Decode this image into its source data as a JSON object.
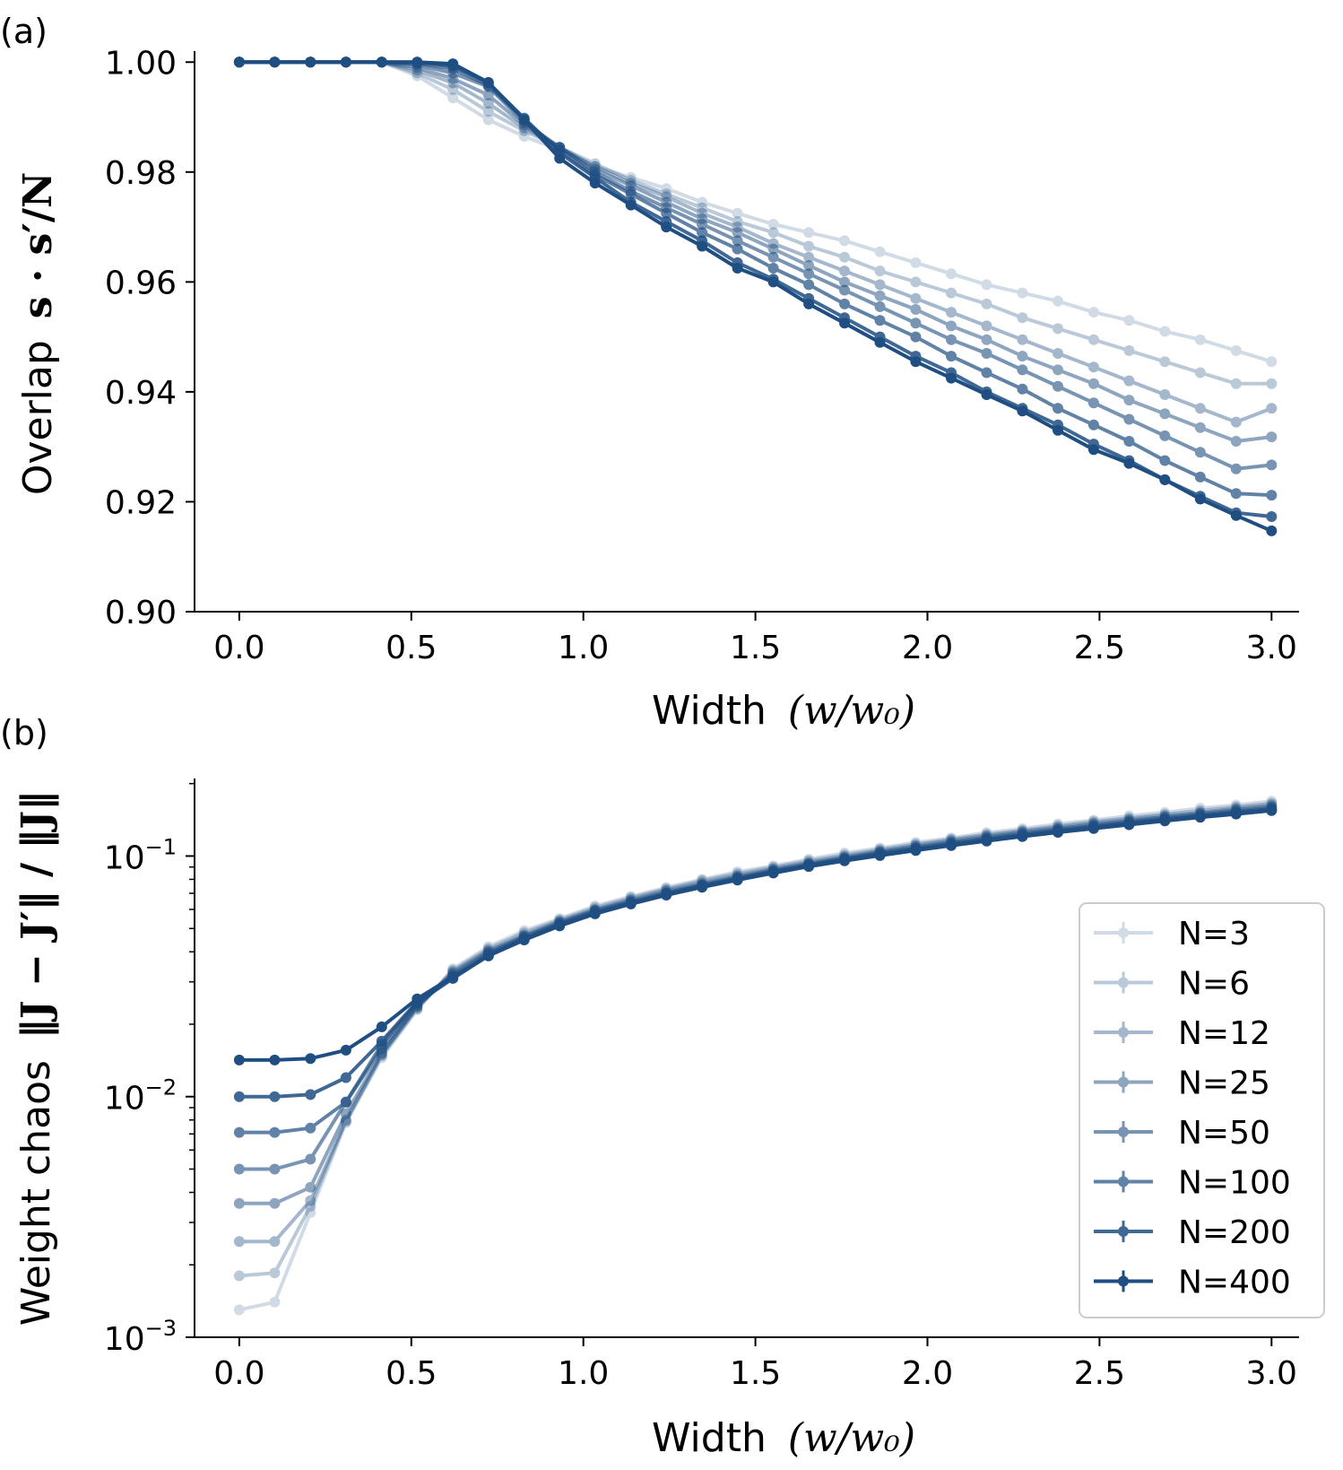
{
  "panels": {
    "a": {
      "label": "(a)"
    },
    "b": {
      "label": "(b)"
    }
  },
  "chart_data": [
    {
      "panel": "a",
      "type": "line",
      "title": "",
      "xlabel_text": "Width",
      "xlabel_math": "(w/w₀)",
      "ylabel_text": "Overlap",
      "ylabel_math": "s · s′/N",
      "xlim": [
        -0.13,
        3.08
      ],
      "ylim": [
        0.9,
        1.002
      ],
      "xticks": [
        0.0,
        0.5,
        1.0,
        1.5,
        2.0,
        2.5,
        3.0
      ],
      "xtick_labels": [
        "0.0",
        "0.5",
        "1.0",
        "1.5",
        "2.0",
        "2.5",
        "3.0"
      ],
      "yticks": [
        0.9,
        0.92,
        0.94,
        0.96,
        0.98,
        1.0
      ],
      "ytick_labels": [
        "0.90",
        "0.92",
        "0.94",
        "0.96",
        "0.98",
        "1.00"
      ],
      "x": [
        0.0,
        0.103,
        0.207,
        0.31,
        0.414,
        0.517,
        0.621,
        0.724,
        0.828,
        0.931,
        1.034,
        1.138,
        1.241,
        1.345,
        1.448,
        1.552,
        1.655,
        1.759,
        1.862,
        1.966,
        2.069,
        2.172,
        2.276,
        2.379,
        2.483,
        2.586,
        2.69,
        2.793,
        2.897,
        3.0
      ],
      "series": [
        {
          "name": "N=3",
          "values": [
            1.0,
            1.0,
            1.0,
            1.0,
            1.0,
            0.9975,
            0.9935,
            0.9895,
            0.9865,
            0.984,
            0.981,
            0.979,
            0.977,
            0.9745,
            0.9725,
            0.9705,
            0.969,
            0.9675,
            0.9655,
            0.9635,
            0.9615,
            0.9595,
            0.958,
            0.9565,
            0.9545,
            0.953,
            0.951,
            0.9495,
            0.9475,
            0.9455
          ]
        },
        {
          "name": "N=6",
          "values": [
            1.0,
            1.0,
            1.0,
            1.0,
            1.0,
            0.998,
            0.995,
            0.991,
            0.9875,
            0.9845,
            0.9815,
            0.9785,
            0.976,
            0.9735,
            0.971,
            0.969,
            0.9665,
            0.9645,
            0.962,
            0.96,
            0.958,
            0.956,
            0.9535,
            0.9515,
            0.9495,
            0.9475,
            0.9455,
            0.9435,
            0.9415,
            0.9415
          ]
        },
        {
          "name": "N=12",
          "values": [
            1.0,
            1.0,
            1.0,
            1.0,
            1.0,
            0.9985,
            0.9962,
            0.9925,
            0.988,
            0.9845,
            0.981,
            0.978,
            0.9755,
            0.9725,
            0.97,
            0.967,
            0.9645,
            0.962,
            0.9595,
            0.957,
            0.9545,
            0.952,
            0.9495,
            0.947,
            0.9445,
            0.942,
            0.9395,
            0.937,
            0.9345,
            0.937
          ]
        },
        {
          "name": "N=25",
          "values": [
            1.0,
            1.0,
            1.0,
            1.0,
            1.0,
            0.999,
            0.997,
            0.994,
            0.9885,
            0.9845,
            0.9805,
            0.9775,
            0.9745,
            0.9715,
            0.969,
            0.966,
            0.963,
            0.96,
            0.9575,
            0.955,
            0.952,
            0.9495,
            0.9465,
            0.944,
            0.9415,
            0.9385,
            0.936,
            0.9335,
            0.931,
            0.9318
          ]
        },
        {
          "name": "N=50",
          "values": [
            1.0,
            1.0,
            1.0,
            1.0,
            1.0,
            0.9995,
            0.998,
            0.9955,
            0.989,
            0.9845,
            0.98,
            0.9765,
            0.9735,
            0.9705,
            0.9675,
            0.9645,
            0.9615,
            0.9585,
            0.9555,
            0.9525,
            0.9495,
            0.947,
            0.944,
            0.941,
            0.938,
            0.935,
            0.932,
            0.929,
            0.926,
            0.9267
          ]
        },
        {
          "name": "N=100",
          "values": [
            1.0,
            1.0,
            1.0,
            1.0,
            1.0,
            0.9998,
            0.9988,
            0.9958,
            0.9895,
            0.984,
            0.9795,
            0.976,
            0.9725,
            0.969,
            0.966,
            0.9625,
            0.9595,
            0.956,
            0.953,
            0.95,
            0.9465,
            0.9435,
            0.9405,
            0.937,
            0.934,
            0.931,
            0.9275,
            0.9245,
            0.9215,
            0.9212
          ]
        },
        {
          "name": "N=200",
          "values": [
            1.0,
            1.0,
            1.0,
            1.0,
            1.0,
            1.0,
            0.9993,
            0.9962,
            0.9898,
            0.9835,
            0.979,
            0.9745,
            0.971,
            0.9675,
            0.9635,
            0.9605,
            0.957,
            0.9535,
            0.95,
            0.9465,
            0.9435,
            0.94,
            0.937,
            0.934,
            0.9305,
            0.9275,
            0.924,
            0.921,
            0.918,
            0.9173
          ]
        },
        {
          "name": "N=400",
          "values": [
            1.0,
            1.0,
            1.0,
            1.0,
            1.0,
            1.0,
            0.9997,
            0.9963,
            0.9895,
            0.9825,
            0.978,
            0.974,
            0.97,
            0.9665,
            0.9625,
            0.96,
            0.956,
            0.9525,
            0.949,
            0.9455,
            0.9425,
            0.9395,
            0.9365,
            0.933,
            0.9295,
            0.927,
            0.924,
            0.9205,
            0.9175,
            0.9147
          ]
        }
      ],
      "colors": [
        "#1f4e82"
      ],
      "alphas": [
        0.2,
        0.3,
        0.4,
        0.5,
        0.6,
        0.7,
        0.85,
        1.0
      ],
      "grid": false
    },
    {
      "panel": "b",
      "type": "line",
      "scale_y": "log",
      "title": "",
      "xlabel_text": "Width",
      "xlabel_math": "(w/w₀)",
      "ylabel_text": "Weight chaos",
      "ylabel_math": "‖J − J′‖ / ‖J‖",
      "xlim": [
        -0.13,
        3.08
      ],
      "ylim": [
        0.001,
        0.21
      ],
      "xticks": [
        0.0,
        0.5,
        1.0,
        1.5,
        2.0,
        2.5,
        3.0
      ],
      "xtick_labels": [
        "0.0",
        "0.5",
        "1.0",
        "1.5",
        "2.0",
        "2.5",
        "3.0"
      ],
      "yticks": [
        0.001,
        0.01,
        0.1
      ],
      "ytick_labels": [
        {
          "base": "10",
          "exp": "−3"
        },
        {
          "base": "10",
          "exp": "−2"
        },
        {
          "base": "10",
          "exp": "−1"
        }
      ],
      "x": [
        0.0,
        0.103,
        0.207,
        0.31,
        0.414,
        0.517,
        0.621,
        0.724,
        0.828,
        0.931,
        1.034,
        1.138,
        1.241,
        1.345,
        1.448,
        1.552,
        1.655,
        1.759,
        1.862,
        1.966,
        2.069,
        2.172,
        2.276,
        2.379,
        2.483,
        2.586,
        2.69,
        2.793,
        2.897,
        3.0
      ],
      "series": [
        {
          "name": "N=3",
          "values": [
            0.0013,
            0.0014,
            0.0033,
            0.0078,
            0.0145,
            0.023,
            0.034,
            0.042,
            0.049,
            0.055,
            0.062,
            0.068,
            0.074,
            0.08,
            0.086,
            0.091,
            0.097,
            0.103,
            0.108,
            0.114,
            0.119,
            0.125,
            0.13,
            0.136,
            0.141,
            0.147,
            0.152,
            0.158,
            0.163,
            0.169
          ]
        },
        {
          "name": "N=6",
          "values": [
            0.0018,
            0.00185,
            0.0035,
            0.0079,
            0.0148,
            0.0232,
            0.0335,
            0.0412,
            0.048,
            0.0542,
            0.061,
            0.067,
            0.073,
            0.079,
            0.0845,
            0.0898,
            0.0955,
            0.101,
            0.1065,
            0.112,
            0.1175,
            0.123,
            0.128,
            0.1335,
            0.139,
            0.144,
            0.149,
            0.1545,
            0.16,
            0.1655
          ]
        },
        {
          "name": "N=12",
          "values": [
            0.0025,
            0.0025,
            0.0037,
            0.008,
            0.015,
            0.0235,
            0.033,
            0.0405,
            0.047,
            0.0535,
            0.06,
            0.066,
            0.072,
            0.0775,
            0.083,
            0.0885,
            0.094,
            0.0995,
            0.105,
            0.1105,
            0.116,
            0.1212,
            0.1265,
            0.1315,
            0.137,
            0.142,
            0.147,
            0.152,
            0.1575,
            0.163
          ]
        },
        {
          "name": "N=25",
          "values": [
            0.0036,
            0.0036,
            0.0042,
            0.0085,
            0.0152,
            0.0238,
            0.0325,
            0.04,
            0.0465,
            0.053,
            0.0595,
            0.0652,
            0.071,
            0.0765,
            0.082,
            0.0875,
            0.093,
            0.0985,
            0.104,
            0.1092,
            0.1145,
            0.1198,
            0.125,
            0.13,
            0.1352,
            0.1402,
            0.1452,
            0.1502,
            0.1555,
            0.1605
          ]
        },
        {
          "name": "N=50",
          "values": [
            0.005,
            0.005,
            0.0055,
            0.0095,
            0.0158,
            0.024,
            0.032,
            0.0395,
            0.046,
            0.0525,
            0.059,
            0.0645,
            0.0702,
            0.0758,
            0.0812,
            0.0867,
            0.0922,
            0.0975,
            0.103,
            0.108,
            0.1132,
            0.1185,
            0.1235,
            0.1285,
            0.1335,
            0.1385,
            0.1435,
            0.1485,
            0.1535,
            0.1585
          ]
        },
        {
          "name": "N=100",
          "values": [
            0.0071,
            0.0071,
            0.0074,
            0.0095,
            0.0165,
            0.0245,
            0.031,
            0.039,
            0.0455,
            0.052,
            0.0582,
            0.064,
            0.0697,
            0.0752,
            0.0805,
            0.086,
            0.0915,
            0.0968,
            0.102,
            0.107,
            0.1122,
            0.1172,
            0.1222,
            0.1272,
            0.1322,
            0.1372,
            0.1422,
            0.147,
            0.152,
            0.157
          ]
        },
        {
          "name": "N=200",
          "values": [
            0.01,
            0.01,
            0.0102,
            0.012,
            0.017,
            0.0248,
            0.031,
            0.0385,
            0.045,
            0.0515,
            0.0578,
            0.0635,
            0.0692,
            0.0747,
            0.08,
            0.0855,
            0.091,
            0.0962,
            0.1012,
            0.1062,
            0.1112,
            0.1162,
            0.1212,
            0.1262,
            0.131,
            0.136,
            0.141,
            0.1458,
            0.1505,
            0.1555
          ]
        },
        {
          "name": "N=400",
          "values": [
            0.0142,
            0.0142,
            0.0144,
            0.0156,
            0.0195,
            0.0255,
            0.0315,
            0.0385,
            0.0448,
            0.0512,
            0.0575,
            0.0632,
            0.0688,
            0.0742,
            0.0795,
            0.085,
            0.0905,
            0.0955,
            0.1005,
            0.1055,
            0.1105,
            0.1155,
            0.1205,
            0.1255,
            0.1302,
            0.135,
            0.14,
            0.1448,
            0.1495,
            0.1545
          ]
        }
      ],
      "legend": {
        "placement": "lower right",
        "entries": [
          "N=3",
          "N=6",
          "N=12",
          "N=25",
          "N=50",
          "N=100",
          "N=200",
          "N=400"
        ]
      },
      "colors": [
        "#1f4e82"
      ],
      "alphas": [
        0.2,
        0.3,
        0.4,
        0.5,
        0.6,
        0.7,
        0.85,
        1.0
      ],
      "grid": false
    }
  ]
}
